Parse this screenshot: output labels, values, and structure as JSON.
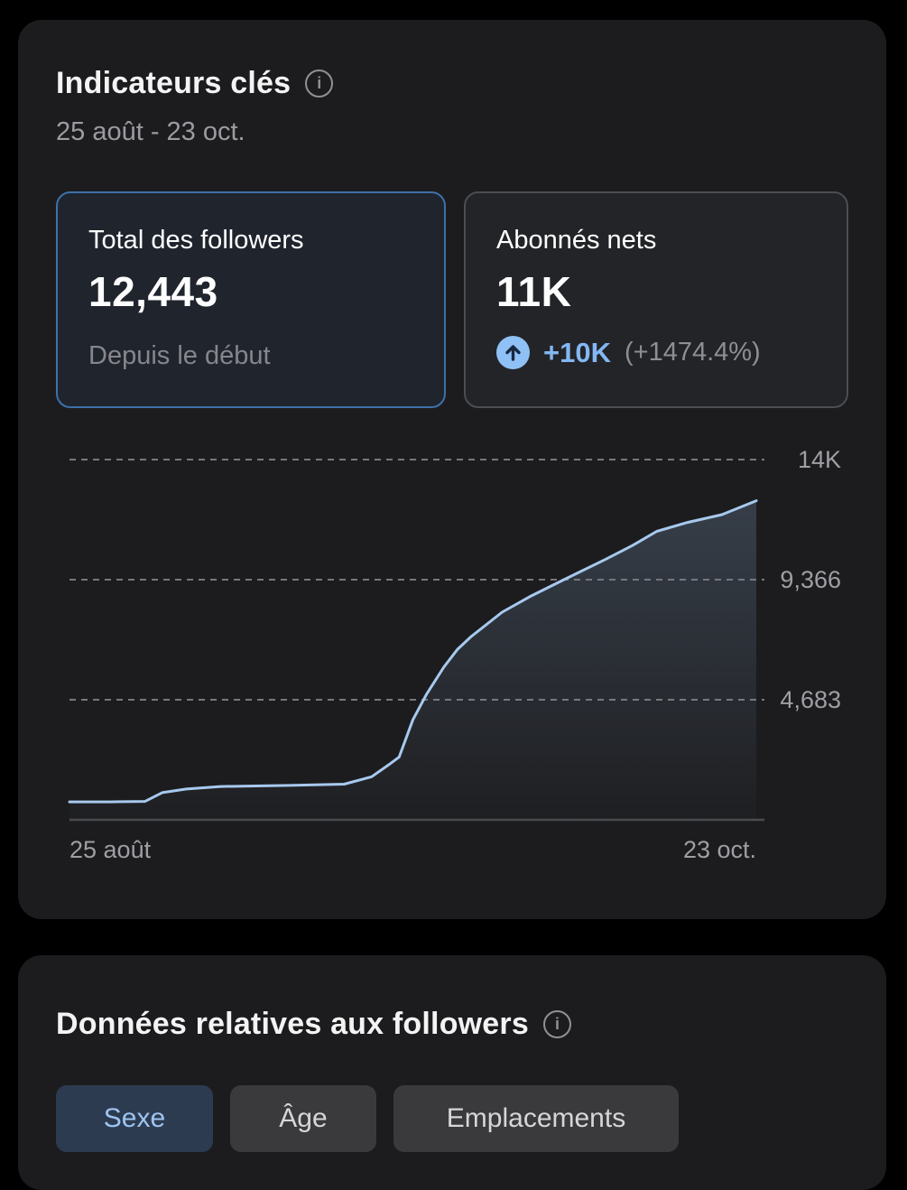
{
  "colors": {
    "accent_blue": "#3e70aa",
    "trend_blue": "#83b7f3",
    "line": "#a7c9ee",
    "area_top": "rgba(148,184,226,0.22)",
    "area_bottom": "rgba(148,184,226,0.02)",
    "grid_dash": "#77787c",
    "axis": "#4a4b4f"
  },
  "key_metrics": {
    "title": "Indicateurs clés",
    "date_range": "25 août - 23 oct.",
    "cards": [
      {
        "label": "Total des followers",
        "value": "12,443",
        "sublabel": "Depuis le début",
        "selected": true
      },
      {
        "label": "Abonnés nets",
        "value": "11K",
        "trend_delta": "+10K",
        "trend_percent": "(+1474.4%)",
        "selected": false
      }
    ]
  },
  "chart_data": {
    "type": "area",
    "title": "",
    "xlabel": "",
    "ylabel": "",
    "x_axis": {
      "start_label": "25 août",
      "end_label": "23 oct."
    },
    "ylim": [
      0,
      14800
    ],
    "grid": "horizontal-dashed",
    "legend": "none",
    "y_ticks": [
      {
        "value": 4683,
        "label": "4,683"
      },
      {
        "value": 9366,
        "label": "9,366"
      },
      {
        "value": 14049,
        "label": "14K"
      }
    ],
    "points": [
      [
        0.0,
        700
      ],
      [
        0.06,
        700
      ],
      [
        0.11,
        720
      ],
      [
        0.135,
        1060
      ],
      [
        0.17,
        1200
      ],
      [
        0.22,
        1300
      ],
      [
        0.32,
        1340
      ],
      [
        0.4,
        1390
      ],
      [
        0.44,
        1680
      ],
      [
        0.465,
        2150
      ],
      [
        0.48,
        2450
      ],
      [
        0.5,
        3900
      ],
      [
        0.52,
        4900
      ],
      [
        0.545,
        5950
      ],
      [
        0.565,
        6650
      ],
      [
        0.585,
        7150
      ],
      [
        0.63,
        8100
      ],
      [
        0.67,
        8700
      ],
      [
        0.72,
        9366
      ],
      [
        0.78,
        10150
      ],
      [
        0.82,
        10700
      ],
      [
        0.855,
        11250
      ],
      [
        0.9,
        11600
      ],
      [
        0.95,
        11900
      ],
      [
        1.0,
        12443
      ]
    ]
  },
  "followers_section": {
    "title": "Données relatives aux followers",
    "tabs": [
      {
        "label": "Sexe",
        "active": true
      },
      {
        "label": "Âge",
        "active": false
      },
      {
        "label": "Emplacements",
        "active": false
      }
    ]
  }
}
